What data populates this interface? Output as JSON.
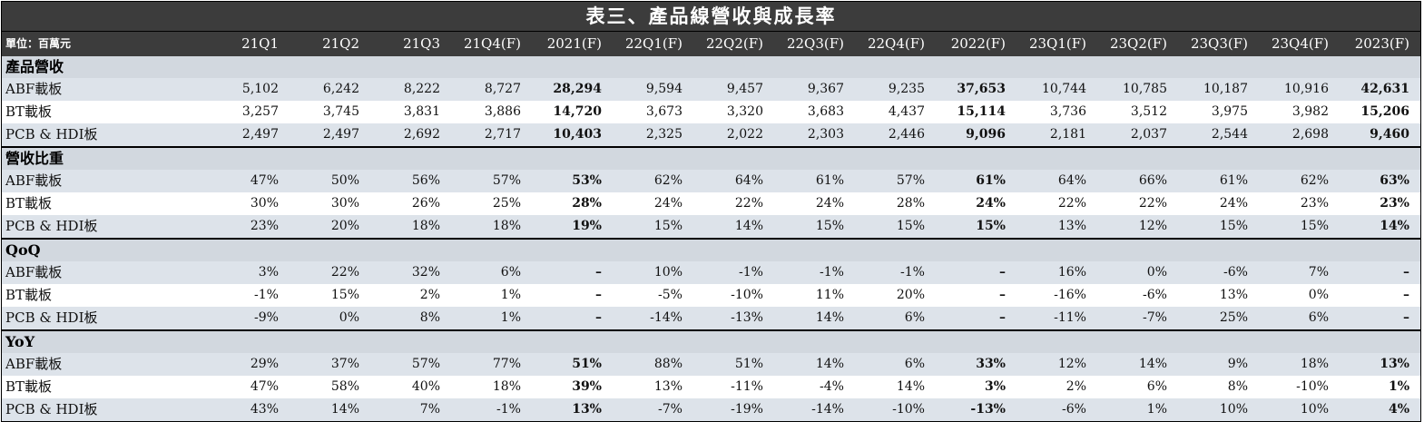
{
  "title": "表三、產品線營收與成長率",
  "unit_label": "單位：百萬元",
  "columns": [
    "21Q1",
    "21Q2",
    "21Q3",
    "21Q4(F)",
    "2021(F)",
    "22Q1(F)",
    "22Q2(F)",
    "22Q3(F)",
    "22Q4(F)",
    "2022(F)",
    "23Q1(F)",
    "23Q2(F)",
    "23Q3(F)",
    "23Q4(F)",
    "2023(F)"
  ],
  "bold_columns": [
    4,
    9,
    14
  ],
  "sections": [
    {
      "name": "產品營收",
      "rows": [
        {
          "label": "ABF載板",
          "values": [
            "5,102",
            "6,242",
            "8,222",
            "8,727",
            "28,294",
            "9,594",
            "9,457",
            "9,367",
            "9,235",
            "37,653",
            "10,744",
            "10,785",
            "10,187",
            "10,916",
            "42,631"
          ]
        },
        {
          "label": "BT載板",
          "values": [
            "3,257",
            "3,745",
            "3,831",
            "3,886",
            "14,720",
            "3,673",
            "3,320",
            "3,683",
            "4,437",
            "15,114",
            "3,736",
            "3,512",
            "3,975",
            "3,982",
            "15,206"
          ]
        },
        {
          "label": "PCB & HDI板",
          "values": [
            "2,497",
            "2,497",
            "2,692",
            "2,717",
            "10,403",
            "2,325",
            "2,022",
            "2,303",
            "2,446",
            "9,096",
            "2,181",
            "2,037",
            "2,544",
            "2,698",
            "9,460"
          ]
        }
      ]
    },
    {
      "name": "營收比重",
      "rows": [
        {
          "label": "ABF載板",
          "values": [
            "47%",
            "50%",
            "56%",
            "57%",
            "53%",
            "62%",
            "64%",
            "61%",
            "57%",
            "61%",
            "64%",
            "66%",
            "61%",
            "62%",
            "63%"
          ]
        },
        {
          "label": "BT載板",
          "values": [
            "30%",
            "30%",
            "26%",
            "25%",
            "28%",
            "24%",
            "22%",
            "24%",
            "28%",
            "24%",
            "22%",
            "22%",
            "24%",
            "23%",
            "23%"
          ]
        },
        {
          "label": "PCB & HDI板",
          "values": [
            "23%",
            "20%",
            "18%",
            "18%",
            "19%",
            "15%",
            "14%",
            "15%",
            "15%",
            "15%",
            "13%",
            "12%",
            "15%",
            "15%",
            "14%"
          ]
        }
      ]
    },
    {
      "name": "QoQ",
      "rows": [
        {
          "label": "ABF載板",
          "values": [
            "3%",
            "22%",
            "32%",
            "6%",
            "–",
            "10%",
            "-1%",
            "-1%",
            "-1%",
            "–",
            "16%",
            "0%",
            "-6%",
            "7%",
            "–"
          ]
        },
        {
          "label": "BT載板",
          "values": [
            "-1%",
            "15%",
            "2%",
            "1%",
            "–",
            "-5%",
            "-10%",
            "11%",
            "20%",
            "–",
            "-16%",
            "-6%",
            "13%",
            "0%",
            "–"
          ]
        },
        {
          "label": "PCB & HDI板",
          "values": [
            "-9%",
            "0%",
            "8%",
            "1%",
            "–",
            "-14%",
            "-13%",
            "14%",
            "6%",
            "–",
            "-11%",
            "-7%",
            "25%",
            "6%",
            "–"
          ]
        }
      ]
    },
    {
      "name": "YoY",
      "rows": [
        {
          "label": "ABF載板",
          "values": [
            "29%",
            "37%",
            "57%",
            "77%",
            "51%",
            "88%",
            "51%",
            "14%",
            "6%",
            "33%",
            "12%",
            "14%",
            "9%",
            "18%",
            "13%"
          ]
        },
        {
          "label": "BT載板",
          "values": [
            "47%",
            "58%",
            "40%",
            "18%",
            "39%",
            "13%",
            "-11%",
            "-4%",
            "14%",
            "3%",
            "2%",
            "6%",
            "8%",
            "-10%",
            "1%"
          ]
        },
        {
          "label": "PCB & HDI板",
          "values": [
            "43%",
            "14%",
            "7%",
            "-1%",
            "13%",
            "-7%",
            "-19%",
            "-14%",
            "-10%",
            "-13%",
            "-6%",
            "1%",
            "10%",
            "10%",
            "4%"
          ]
        }
      ]
    }
  ]
}
